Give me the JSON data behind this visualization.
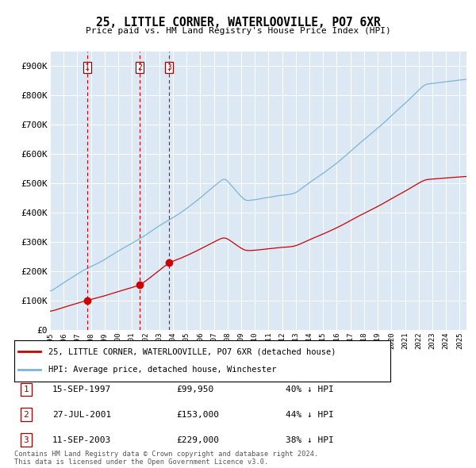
{
  "title": "25, LITTLE CORNER, WATERLOOVILLE, PO7 6XR",
  "subtitle": "Price paid vs. HM Land Registry's House Price Index (HPI)",
  "legend_line1": "25, LITTLE CORNER, WATERLOOVILLE, PO7 6XR (detached house)",
  "legend_line2": "HPI: Average price, detached house, Winchester",
  "transactions": [
    {
      "num": 1,
      "date": "15-SEP-1997",
      "price": 99950,
      "price_str": "£99,950",
      "hpi_pct": "40% ↓ HPI",
      "x": 1997.71
    },
    {
      "num": 2,
      "date": "27-JUL-2001",
      "price": 153000,
      "price_str": "£153,000",
      "hpi_pct": "44% ↓ HPI",
      "x": 2001.57
    },
    {
      "num": 3,
      "date": "11-SEP-2003",
      "price": 229000,
      "price_str": "£229,000",
      "hpi_pct": "38% ↓ HPI",
      "x": 2003.71
    }
  ],
  "ylabel_ticks": [
    "£0",
    "£100K",
    "£200K",
    "£300K",
    "£400K",
    "£500K",
    "£600K",
    "£700K",
    "£800K",
    "£900K"
  ],
  "ytick_vals": [
    0,
    100000,
    200000,
    300000,
    400000,
    500000,
    600000,
    700000,
    800000,
    900000
  ],
  "xlim": [
    1995.0,
    2025.5
  ],
  "ylim": [
    0,
    950000
  ],
  "hpi_color": "#7ab4d8",
  "price_color": "#cc0000",
  "vline_color": "#cc0000",
  "bg_color": "#dce9f5",
  "grid_color": "#ffffff",
  "footer_text": "Contains HM Land Registry data © Crown copyright and database right 2024.\nThis data is licensed under the Open Government Licence v3.0."
}
